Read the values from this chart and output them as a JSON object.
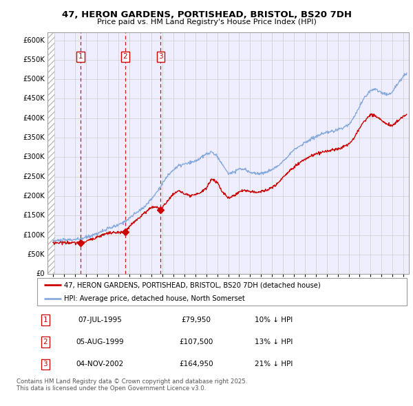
{
  "title_line1": "47, HERON GARDENS, PORTISHEAD, BRISTOL, BS20 7DH",
  "title_line2": "Price paid vs. HM Land Registry's House Price Index (HPI)",
  "ylim": [
    0,
    620000
  ],
  "yticks": [
    0,
    50000,
    100000,
    150000,
    200000,
    250000,
    300000,
    350000,
    400000,
    450000,
    500000,
    550000,
    600000
  ],
  "ytick_labels": [
    "£0",
    "£50K",
    "£100K",
    "£150K",
    "£200K",
    "£250K",
    "£300K",
    "£350K",
    "£400K",
    "£450K",
    "£500K",
    "£550K",
    "£600K"
  ],
  "transactions": [
    {
      "label": "1",
      "date": "07-JUL-1995",
      "date_num": 1995.52,
      "price": 79950,
      "pct": "10%",
      "dir": "↓"
    },
    {
      "label": "2",
      "date": "05-AUG-1999",
      "date_num": 1999.6,
      "price": 107500,
      "pct": "13%",
      "dir": "↓"
    },
    {
      "label": "3",
      "date": "04-NOV-2002",
      "date_num": 2002.84,
      "price": 164950,
      "pct": "21%",
      "dir": "↓"
    }
  ],
  "legend_line1": "47, HERON GARDENS, PORTISHEAD, BRISTOL, BS20 7DH (detached house)",
  "legend_line2": "HPI: Average price, detached house, North Somerset",
  "footer": "Contains HM Land Registry data © Crown copyright and database right 2025.\nThis data is licensed under the Open Government Licence v3.0.",
  "red_color": "#cc0000",
  "blue_color": "#88aadd",
  "grid_color": "#cccccc",
  "plot_bg_color": "#eeeeff",
  "xmin": 1992.5,
  "xmax": 2025.5,
  "xtick_start": 1993,
  "xtick_end": 2025,
  "hpi_anchors": [
    [
      1993.0,
      85000
    ],
    [
      1993.5,
      86500
    ],
    [
      1994.0,
      87000
    ],
    [
      1994.5,
      88000
    ],
    [
      1995.0,
      88500
    ],
    [
      1995.5,
      89500
    ],
    [
      1996.0,
      94000
    ],
    [
      1996.5,
      99000
    ],
    [
      1997.0,
      104000
    ],
    [
      1997.5,
      110000
    ],
    [
      1998.0,
      116000
    ],
    [
      1998.5,
      121000
    ],
    [
      1999.0,
      126000
    ],
    [
      1999.5,
      134000
    ],
    [
      2000.0,
      144000
    ],
    [
      2000.5,
      155000
    ],
    [
      2001.0,
      165000
    ],
    [
      2001.5,
      177000
    ],
    [
      2002.0,
      193000
    ],
    [
      2002.5,
      211000
    ],
    [
      2003.0,
      233000
    ],
    [
      2003.5,
      253000
    ],
    [
      2004.0,
      268000
    ],
    [
      2004.5,
      278000
    ],
    [
      2005.0,
      282000
    ],
    [
      2005.5,
      285000
    ],
    [
      2006.0,
      290000
    ],
    [
      2006.5,
      298000
    ],
    [
      2007.0,
      308000
    ],
    [
      2007.5,
      313000
    ],
    [
      2008.0,
      302000
    ],
    [
      2008.5,
      280000
    ],
    [
      2009.0,
      258000
    ],
    [
      2009.5,
      262000
    ],
    [
      2010.0,
      270000
    ],
    [
      2010.5,
      268000
    ],
    [
      2011.0,
      262000
    ],
    [
      2011.5,
      258000
    ],
    [
      2012.0,
      258000
    ],
    [
      2012.5,
      262000
    ],
    [
      2013.0,
      268000
    ],
    [
      2013.5,
      276000
    ],
    [
      2014.0,
      290000
    ],
    [
      2014.5,
      305000
    ],
    [
      2015.0,
      318000
    ],
    [
      2015.5,
      328000
    ],
    [
      2016.0,
      337000
    ],
    [
      2016.5,
      345000
    ],
    [
      2017.0,
      353000
    ],
    [
      2017.5,
      358000
    ],
    [
      2018.0,
      363000
    ],
    [
      2018.5,
      366000
    ],
    [
      2019.0,
      370000
    ],
    [
      2019.5,
      376000
    ],
    [
      2020.0,
      384000
    ],
    [
      2020.5,
      403000
    ],
    [
      2021.0,
      430000
    ],
    [
      2021.5,
      455000
    ],
    [
      2022.0,
      472000
    ],
    [
      2022.5,
      475000
    ],
    [
      2023.0,
      465000
    ],
    [
      2023.5,
      460000
    ],
    [
      2024.0,
      468000
    ],
    [
      2024.5,
      490000
    ],
    [
      2025.0,
      508000
    ],
    [
      2025.3,
      515000
    ]
  ],
  "pp_anchors": [
    [
      1993.0,
      80000
    ],
    [
      1993.5,
      80500
    ],
    [
      1994.0,
      80800
    ],
    [
      1994.5,
      80500
    ],
    [
      1995.0,
      79800
    ],
    [
      1995.52,
      79950
    ],
    [
      1996.0,
      84000
    ],
    [
      1996.5,
      89000
    ],
    [
      1997.0,
      95000
    ],
    [
      1997.5,
      100000
    ],
    [
      1998.0,
      105000
    ],
    [
      1998.5,
      106000
    ],
    [
      1999.0,
      106500
    ],
    [
      1999.6,
      107500
    ],
    [
      2000.0,
      122000
    ],
    [
      2000.5,
      136000
    ],
    [
      2001.0,
      148000
    ],
    [
      2001.5,
      160000
    ],
    [
      2002.0,
      172000
    ],
    [
      2002.5,
      172000
    ],
    [
      2002.84,
      164950
    ],
    [
      2003.0,
      170000
    ],
    [
      2003.5,
      190000
    ],
    [
      2004.0,
      205000
    ],
    [
      2004.5,
      215000
    ],
    [
      2005.0,
      205000
    ],
    [
      2005.5,
      200000
    ],
    [
      2006.0,
      203000
    ],
    [
      2006.5,
      210000
    ],
    [
      2007.0,
      220000
    ],
    [
      2007.5,
      245000
    ],
    [
      2008.0,
      235000
    ],
    [
      2008.5,
      210000
    ],
    [
      2009.0,
      195000
    ],
    [
      2009.5,
      200000
    ],
    [
      2010.0,
      212000
    ],
    [
      2010.5,
      215000
    ],
    [
      2011.0,
      212000
    ],
    [
      2011.5,
      210000
    ],
    [
      2012.0,
      212000
    ],
    [
      2012.5,
      215000
    ],
    [
      2013.0,
      222000
    ],
    [
      2013.5,
      232000
    ],
    [
      2014.0,
      248000
    ],
    [
      2014.5,
      262000
    ],
    [
      2015.0,
      275000
    ],
    [
      2015.5,
      285000
    ],
    [
      2016.0,
      294000
    ],
    [
      2016.5,
      302000
    ],
    [
      2017.0,
      308000
    ],
    [
      2017.5,
      312000
    ],
    [
      2018.0,
      316000
    ],
    [
      2018.5,
      318000
    ],
    [
      2019.0,
      321000
    ],
    [
      2019.5,
      326000
    ],
    [
      2020.0,
      333000
    ],
    [
      2020.5,
      350000
    ],
    [
      2021.0,
      375000
    ],
    [
      2021.5,
      395000
    ],
    [
      2022.0,
      410000
    ],
    [
      2022.5,
      405000
    ],
    [
      2023.0,
      395000
    ],
    [
      2023.5,
      385000
    ],
    [
      2024.0,
      380000
    ],
    [
      2024.5,
      395000
    ],
    [
      2025.0,
      405000
    ],
    [
      2025.3,
      410000
    ]
  ]
}
